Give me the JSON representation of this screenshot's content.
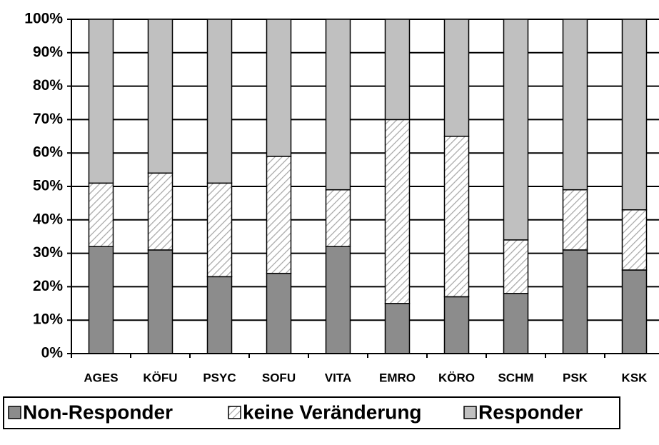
{
  "chart_data": {
    "type": "stacked_bar_100",
    "categories": [
      "AGES",
      "KÖFU",
      "PSYC",
      "SOFU",
      "VITA",
      "EMRO",
      "KÖRO",
      "SCHM",
      "PSK",
      "KSK"
    ],
    "series": [
      {
        "name": "Non-Responder",
        "color": "#8c8c8c",
        "values": [
          32,
          31,
          23,
          24,
          32,
          15,
          17,
          18,
          31,
          25
        ]
      },
      {
        "name": "keine Veränderung",
        "color": "hatch",
        "values": [
          19,
          23,
          28,
          35,
          17,
          55,
          48,
          16,
          18,
          18
        ]
      },
      {
        "name": "Responder",
        "color": "#c0c0c0",
        "values": [
          49,
          46,
          49,
          41,
          51,
          30,
          35,
          66,
          51,
          57
        ]
      }
    ],
    "ylim": [
      0,
      100
    ],
    "yticks": [
      {
        "value": 0,
        "label": "0%"
      },
      {
        "value": 10,
        "label": "10%"
      },
      {
        "value": 20,
        "label": "20%"
      },
      {
        "value": 30,
        "label": "30%"
      },
      {
        "value": 40,
        "label": "40%"
      },
      {
        "value": 50,
        "label": "50%"
      },
      {
        "value": 60,
        "label": "60%"
      },
      {
        "value": 70,
        "label": "70%"
      },
      {
        "value": 80,
        "label": "80%"
      },
      {
        "value": 90,
        "label": "90%"
      },
      {
        "value": 100,
        "label": "100%"
      }
    ],
    "grid": true,
    "legend": "bottom"
  }
}
